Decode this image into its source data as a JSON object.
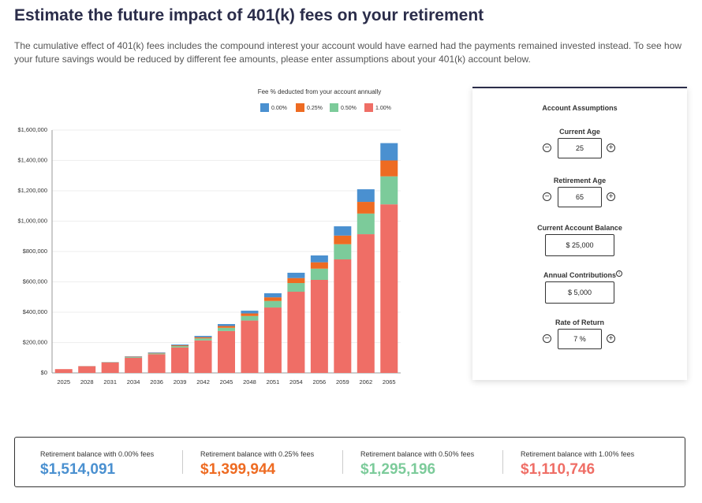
{
  "header": {
    "title": "Estimate the future impact of 401(k) fees on your retirement",
    "description": "The cumulative effect of 401(k) fees includes the compound interest your account would have earned had the payments remained invested instead. To see how your future savings would be reduced by different fee amounts, please enter assumptions about your 401(k) account below."
  },
  "chart_data": {
    "type": "stacked_bar",
    "legend_title": "Fee % deducted from your account annually",
    "categories": [
      "2025",
      "2028",
      "2031",
      "2034",
      "2036",
      "2039",
      "2042",
      "2045",
      "2048",
      "2051",
      "2054",
      "2056",
      "2059",
      "2062",
      "2065"
    ],
    "series": [
      {
        "name": "0.00%",
        "color": "#4a90d0",
        "values": [
          0,
          250,
          800,
          2600,
          3400,
          5400,
          8500,
          13000,
          18000,
          27000,
          35000,
          45000,
          61000,
          83000,
          114147
        ]
      },
      {
        "name": "0.25%",
        "color": "#ee6b22",
        "values": [
          0,
          250,
          800,
          2300,
          3100,
          4900,
          7800,
          12000,
          17000,
          24000,
          33000,
          42000,
          57000,
          77000,
          104748
        ]
      },
      {
        "name": "0.50%",
        "color": "#7ccb9a",
        "values": [
          0,
          500,
          1400,
          4100,
          5500,
          8700,
          13700,
          21000,
          30000,
          43000,
          57000,
          74000,
          100000,
          136000,
          184450
        ]
      },
      {
        "name": "1.00%",
        "color": "#ef6e66",
        "values": [
          25000,
          44000,
          69000,
          100000,
          123000,
          168000,
          214000,
          276000,
          345000,
          431000,
          535000,
          613000,
          748000,
          914000,
          1110746
        ]
      }
    ],
    "ylim": [
      0,
      1600000
    ],
    "yticks": [
      {
        "value": 0,
        "label": "$0"
      },
      {
        "value": 200000,
        "label": "$200,000"
      },
      {
        "value": 400000,
        "label": "$400,000"
      },
      {
        "value": 600000,
        "label": "$600,000"
      },
      {
        "value": 800000,
        "label": "$800,000"
      },
      {
        "value": 1000000,
        "label": "$1,000,000"
      },
      {
        "value": 1200000,
        "label": "$1,200,000"
      },
      {
        "value": 1400000,
        "label": "$1,400,000"
      },
      {
        "value": 1600000,
        "label": "$1,600,000"
      }
    ],
    "grid": true
  },
  "assumptions": {
    "title": "Account Assumptions",
    "fields": [
      {
        "label": "Current Age",
        "value": "25"
      },
      {
        "label": "Retirement Age",
        "value": "65"
      },
      {
        "label": "Current Account Balance",
        "value": "$ 25,000"
      },
      {
        "label": "Annual Contributions",
        "value": "$ 5,000"
      },
      {
        "label": "Rate of Return",
        "value": "7 %"
      }
    ]
  },
  "summary": [
    {
      "label": "Retirement balance with 0.00% fees",
      "value": "$1,514,091"
    },
    {
      "label": "Retirement balance with 0.25% fees",
      "value": "$1,399,944"
    },
    {
      "label": "Retirement balance with 0.50% fees",
      "value": "$1,295,196"
    },
    {
      "label": "Retirement balance with 1.00% fees",
      "value": "$1,110,746"
    }
  ]
}
